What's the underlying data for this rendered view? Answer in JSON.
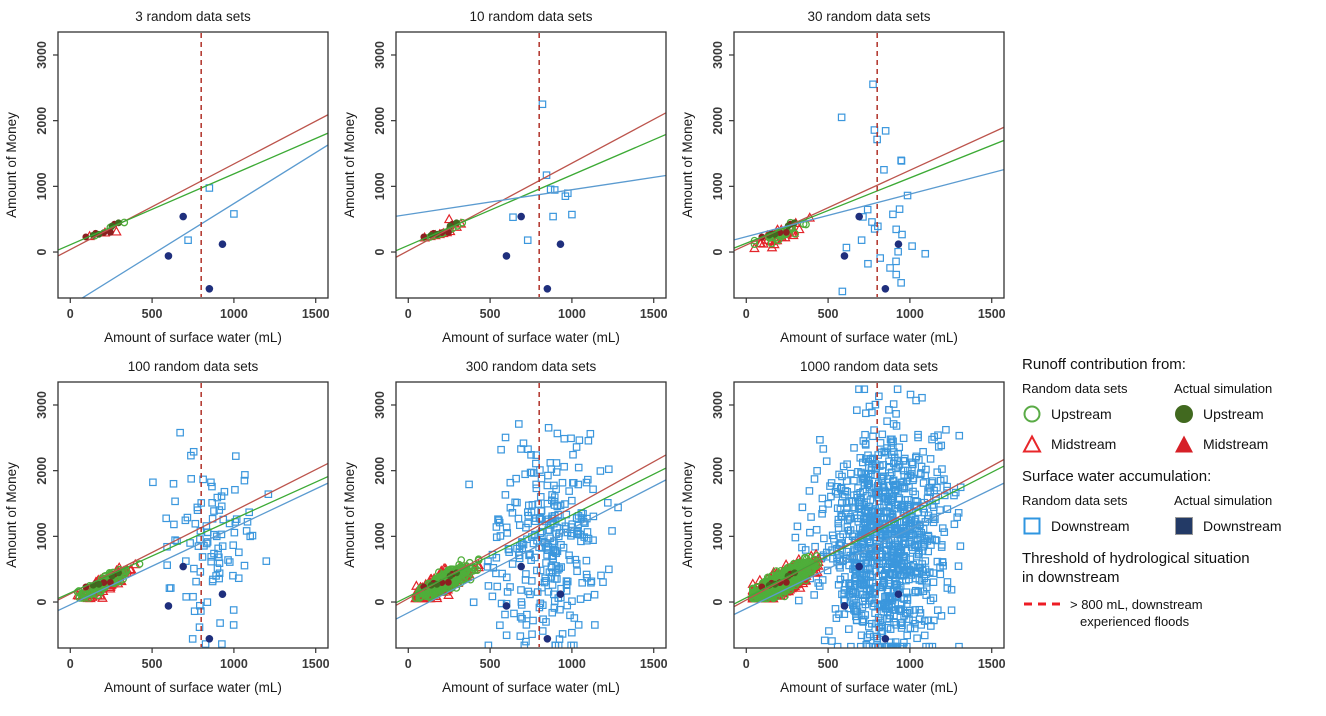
{
  "colors": {
    "green_open": "#4fae3a",
    "red_open": "#e3242a",
    "blue_open": "#3b97dd",
    "dark_green": "#41691f",
    "dark_red": "#8c2020",
    "red_fill": "#d62027",
    "navy": "#1f2f7d",
    "navy_legend": "#233a66",
    "line_red": "#bc544c",
    "line_green": "#3caa35",
    "line_blue": "#5b9bd0",
    "threshold": "#b03028",
    "threshold_legend": "#ed1c24",
    "axis_text": "#3a3a3a",
    "box": "#333333"
  },
  "legend": {
    "runoff_title": "Runoff contribution from:",
    "col_random": "Random data sets",
    "col_actual": "Actual simulation",
    "upstream_label": "Upstream",
    "midstream_label": "Midstream",
    "surface_title": "Surface water accumulation:",
    "downstream_label": "Downstream",
    "threshold_title_line1": "Threshold of hydrological situation",
    "threshold_title_line2": "in downstream",
    "threshold_desc_line1": "> 800 mL, downstream",
    "threshold_desc_line2": "experienced floods"
  },
  "shared": {
    "xlabel": "Amount of surface water (mL)",
    "ylabel": "Amount of Money",
    "xlim": [
      -75,
      1575
    ],
    "ylim": [
      -700,
      3350
    ],
    "xticks": [
      0,
      500,
      1000,
      1500
    ],
    "yticks": [
      0,
      1000,
      2000,
      3000
    ],
    "threshold_x": 800,
    "actual_upstream": [
      [
        140,
        255
      ],
      [
        175,
        270
      ],
      [
        255,
        395
      ],
      [
        295,
        445
      ]
    ],
    "actual_midstream": [
      [
        95,
        230
      ],
      [
        155,
        285
      ],
      [
        205,
        295
      ],
      [
        245,
        300
      ],
      [
        270,
        425
      ]
    ],
    "actual_downstream": [
      [
        690,
        540
      ],
      [
        600,
        -60
      ],
      [
        930,
        120
      ],
      [
        850,
        -560
      ]
    ]
  },
  "chart_data": [
    {
      "type": "scatter",
      "title": "3 random data sets",
      "n_sets": 3,
      "fit_lines": [
        {
          "name": "midstream-fit",
          "color": "line_red",
          "x0": -75,
          "y0": -60,
          "x1": 1575,
          "y1": 2090
        },
        {
          "name": "upstream-fit",
          "color": "line_green",
          "x0": -75,
          "y0": 30,
          "x1": 1575,
          "y1": 1810
        },
        {
          "name": "downstream-fit",
          "color": "line_blue",
          "x0": -75,
          "y0": -930,
          "x1": 1575,
          "y1": 1630
        }
      ],
      "random_upstream": {
        "points": [
          [
            150,
            250
          ],
          [
            245,
            375
          ],
          [
            330,
            450
          ]
        ]
      },
      "random_midstream": {
        "points": [
          [
            118,
            242
          ],
          [
            212,
            297
          ],
          [
            282,
            312
          ]
        ]
      },
      "random_downstream": {
        "points": [
          [
            850,
            975
          ],
          [
            1000,
            580
          ],
          [
            720,
            180
          ]
        ]
      }
    },
    {
      "type": "scatter",
      "title": "10 random data sets",
      "n_sets": 10,
      "fit_lines": [
        {
          "name": "midstream-fit",
          "color": "line_red",
          "x0": -75,
          "y0": -80,
          "x1": 1575,
          "y1": 2120
        },
        {
          "name": "upstream-fit",
          "color": "line_green",
          "x0": -75,
          "y0": 20,
          "x1": 1575,
          "y1": 1790
        },
        {
          "name": "downstream-fit",
          "color": "line_blue",
          "x0": -75,
          "y0": 545,
          "x1": 1575,
          "y1": 1165
        }
      ],
      "random_upstream": {
        "points": [
          [
            105,
            215
          ],
          [
            132,
            228
          ],
          [
            158,
            252
          ],
          [
            184,
            266
          ],
          [
            207,
            282
          ],
          [
            228,
            302
          ],
          [
            252,
            332
          ],
          [
            272,
            362
          ],
          [
            300,
            398
          ],
          [
            330,
            446
          ]
        ]
      },
      "random_midstream": {
        "points": [
          [
            100,
            222
          ],
          [
            136,
            242
          ],
          [
            166,
            256
          ],
          [
            192,
            272
          ],
          [
            214,
            288
          ],
          [
            236,
            302
          ],
          [
            256,
            318
          ],
          [
            250,
            500
          ],
          [
            296,
            382
          ],
          [
            322,
            432
          ]
        ]
      },
      "random_downstream": {
        "points": [
          [
            820,
            2250
          ],
          [
            845,
            1170
          ],
          [
            870,
            955
          ],
          [
            895,
            945
          ],
          [
            975,
            895
          ],
          [
            960,
            850
          ],
          [
            640,
            530
          ],
          [
            885,
            540
          ],
          [
            1000,
            570
          ],
          [
            730,
            180
          ]
        ]
      }
    },
    {
      "type": "scatter",
      "title": "30 random data sets",
      "n_sets": 30,
      "fit_lines": [
        {
          "name": "midstream-fit",
          "color": "line_red",
          "x0": -75,
          "y0": 20,
          "x1": 1575,
          "y1": 1900
        },
        {
          "name": "upstream-fit",
          "color": "line_green",
          "x0": -75,
          "y0": 60,
          "x1": 1575,
          "y1": 1700
        },
        {
          "name": "downstream-fit",
          "color": "line_blue",
          "x0": -75,
          "y0": 185,
          "x1": 1575,
          "y1": 1255
        }
      ],
      "random_upstream": {
        "generate": {
          "count": 30,
          "seed": 31,
          "cx": 210,
          "sdx": 75,
          "slope": 1.25,
          "intercept": 15,
          "noise": 55,
          "clampX": [
            50,
            420
          ],
          "clampY": [
            60,
            760
          ]
        }
      },
      "random_midstream": {
        "generate": {
          "count": 30,
          "seed": 32,
          "cx": 210,
          "sdx": 75,
          "slope": 1.25,
          "intercept": 5,
          "noise": 60,
          "clampX": [
            50,
            420
          ],
          "clampY": [
            60,
            760
          ]
        }
      },
      "random_downstream": {
        "generate": {
          "count": 30,
          "seed": 33,
          "cx": 830,
          "sdx": 160,
          "cy": 780,
          "sdy": 800,
          "clampX": [
            480,
            1180
          ],
          "clampY": [
            -600,
            2700
          ]
        }
      }
    },
    {
      "type": "scatter",
      "title": "100 random data sets",
      "n_sets": 100,
      "fit_lines": [
        {
          "name": "midstream-fit",
          "color": "line_red",
          "x0": -75,
          "y0": 30,
          "x1": 1575,
          "y1": 2110
        },
        {
          "name": "upstream-fit",
          "color": "line_green",
          "x0": -75,
          "y0": 55,
          "x1": 1575,
          "y1": 1910
        },
        {
          "name": "downstream-fit",
          "color": "line_blue",
          "x0": -75,
          "y0": -130,
          "x1": 1575,
          "y1": 1810
        }
      ],
      "random_upstream": {
        "generate": {
          "count": 100,
          "seed": 41,
          "cx": 215,
          "sdx": 75,
          "slope": 1.3,
          "intercept": 20,
          "noise": 60,
          "clampX": [
            45,
            430
          ],
          "clampY": [
            60,
            820
          ]
        }
      },
      "random_midstream": {
        "generate": {
          "count": 100,
          "seed": 42,
          "cx": 215,
          "sdx": 75,
          "slope": 1.3,
          "intercept": 5,
          "noise": 65,
          "clampX": [
            45,
            430
          ],
          "clampY": [
            60,
            820
          ]
        }
      },
      "random_downstream": {
        "generate": {
          "count": 100,
          "seed": 43,
          "cx": 840,
          "sdx": 160,
          "cy": 900,
          "sdy": 780,
          "clampX": [
            380,
            1250
          ],
          "clampY": [
            -640,
            3100
          ]
        }
      }
    },
    {
      "type": "scatter",
      "title": "300 random data sets",
      "n_sets": 300,
      "fit_lines": [
        {
          "name": "midstream-fit",
          "color": "line_red",
          "x0": -75,
          "y0": -50,
          "x1": 1575,
          "y1": 2240
        },
        {
          "name": "upstream-fit",
          "color": "line_green",
          "x0": -75,
          "y0": -10,
          "x1": 1575,
          "y1": 2040
        },
        {
          "name": "downstream-fit",
          "color": "line_blue",
          "x0": -75,
          "y0": -260,
          "x1": 1575,
          "y1": 1860
        }
      ],
      "random_upstream": {
        "generate": {
          "count": 300,
          "seed": 51,
          "cx": 215,
          "sdx": 78,
          "slope": 1.3,
          "intercept": 20,
          "noise": 65,
          "clampX": [
            45,
            430
          ],
          "clampY": [
            60,
            830
          ]
        }
      },
      "random_midstream": {
        "generate": {
          "count": 300,
          "seed": 52,
          "cx": 215,
          "sdx": 78,
          "slope": 1.3,
          "intercept": 5,
          "noise": 70,
          "clampX": [
            45,
            430
          ],
          "clampY": [
            60,
            830
          ]
        }
      },
      "random_downstream": {
        "generate": {
          "count": 300,
          "seed": 53,
          "cx": 845,
          "sdx": 165,
          "cy": 900,
          "sdy": 800,
          "clampX": [
            340,
            1430
          ],
          "clampY": [
            -660,
            3230
          ]
        }
      }
    },
    {
      "type": "scatter",
      "title": "1000 random data sets",
      "n_sets": 1000,
      "fit_lines": [
        {
          "name": "midstream-fit",
          "color": "line_red",
          "x0": -75,
          "y0": -70,
          "x1": 1575,
          "y1": 2170
        },
        {
          "name": "upstream-fit",
          "color": "line_green",
          "x0": -75,
          "y0": -30,
          "x1": 1575,
          "y1": 2070
        },
        {
          "name": "downstream-fit",
          "color": "line_blue",
          "x0": -75,
          "y0": -190,
          "x1": 1575,
          "y1": 1810
        }
      ],
      "random_upstream": {
        "generate": {
          "count": 1000,
          "seed": 61,
          "cx": 220,
          "sdx": 80,
          "slope": 1.3,
          "intercept": 20,
          "noise": 70,
          "clampX": [
            40,
            440
          ],
          "clampY": [
            55,
            840
          ]
        }
      },
      "random_midstream": {
        "generate": {
          "count": 1000,
          "seed": 62,
          "cx": 220,
          "sdx": 80,
          "slope": 1.3,
          "intercept": 5,
          "noise": 75,
          "clampX": [
            40,
            440
          ],
          "clampY": [
            55,
            840
          ]
        }
      },
      "random_downstream": {
        "generate": {
          "count": 1000,
          "seed": 63,
          "cx": 850,
          "sdx": 175,
          "cy": 900,
          "sdy": 820,
          "clampX": [
            300,
            1470
          ],
          "clampY": [
            -680,
            3240
          ]
        }
      }
    }
  ]
}
